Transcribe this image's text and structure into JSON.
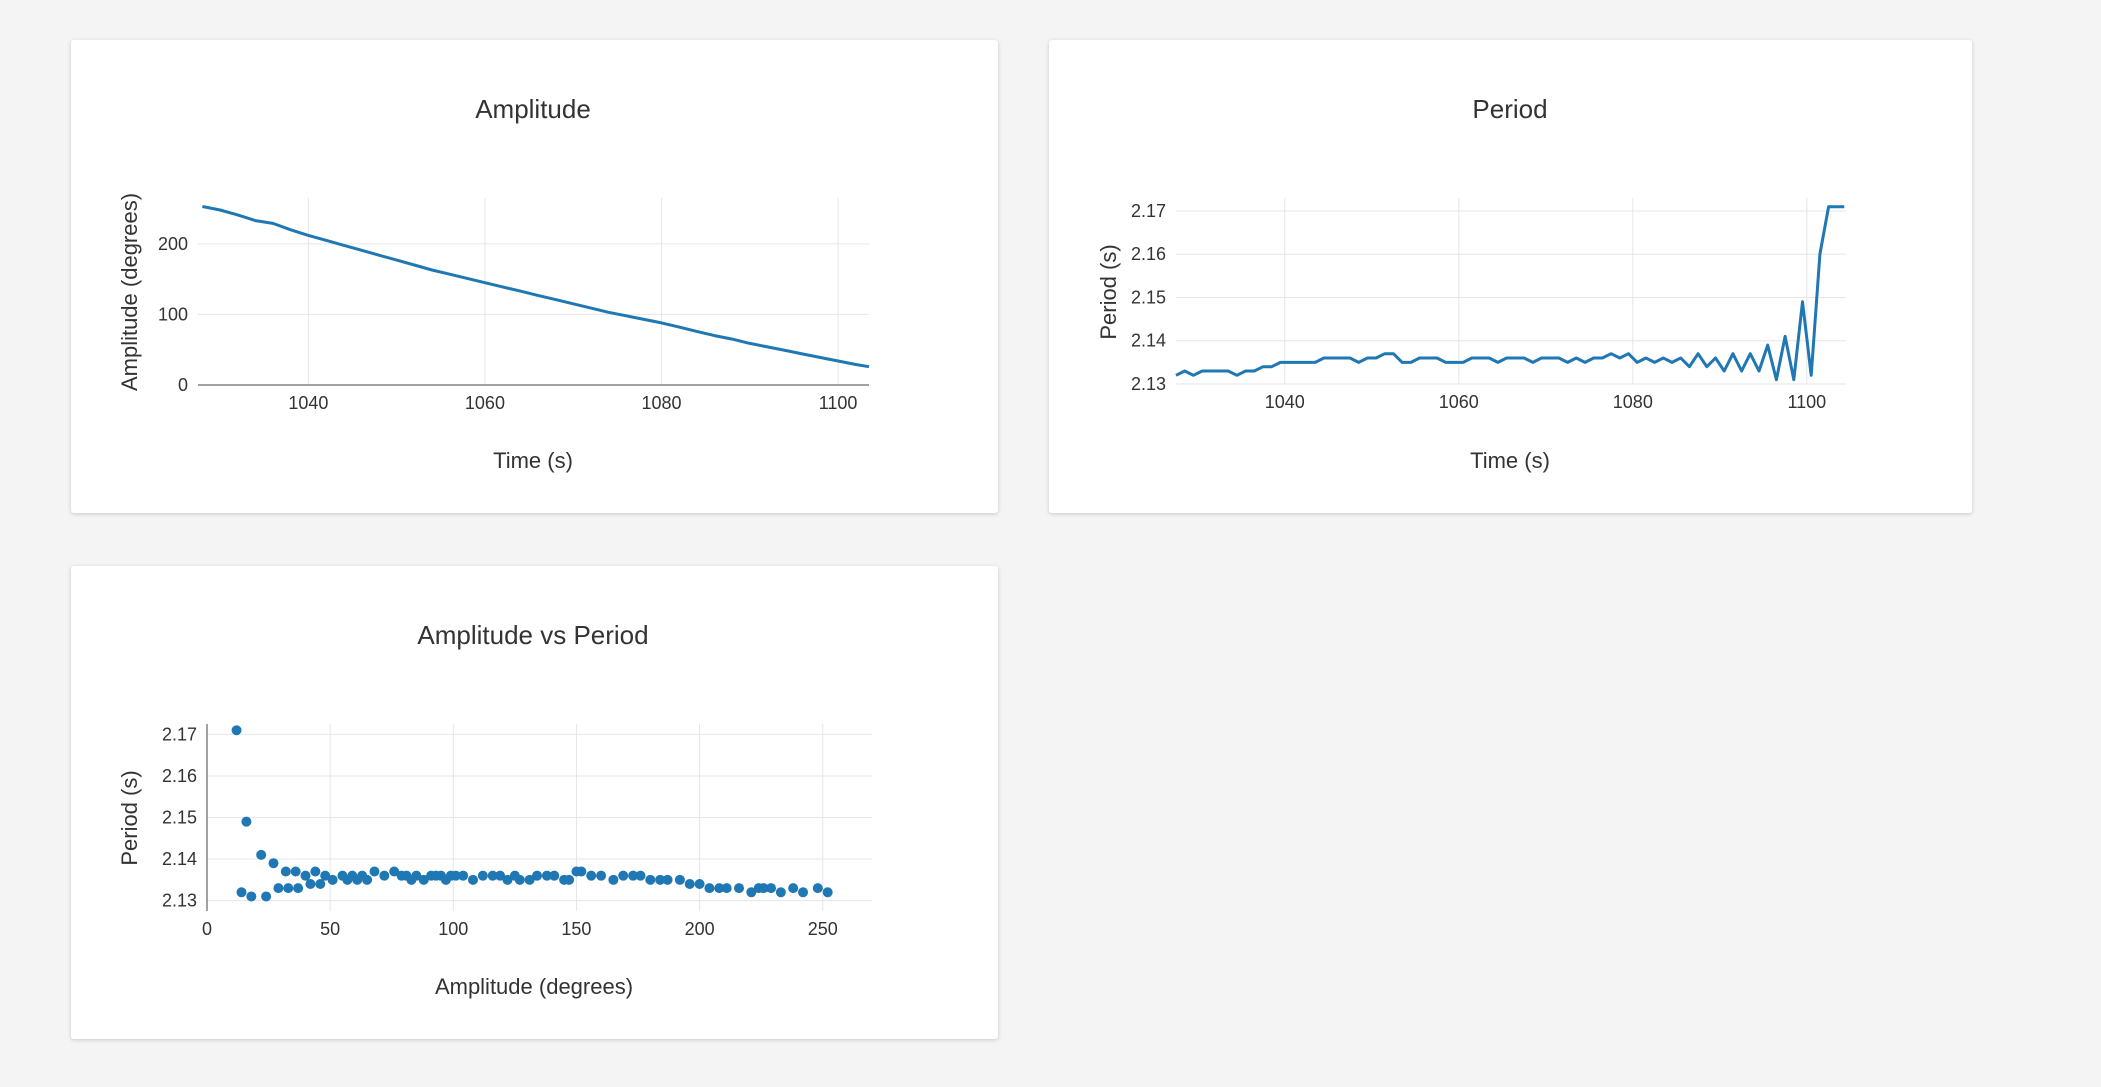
{
  "charts": {
    "amplitude": {
      "title": "Amplitude",
      "xlabel": "Time (s)",
      "ylabel": "Amplitude (degrees)"
    },
    "period": {
      "title": "Period",
      "xlabel": "Time (s)",
      "ylabel": "Period (s)"
    },
    "scatter": {
      "title": "Amplitude vs Period",
      "xlabel": "Amplitude (degrees)",
      "ylabel": "Period (s)"
    }
  },
  "colors": {
    "series": "#1f77b4",
    "grid": "#e6e6e6",
    "text": "#333333",
    "background": "#f4f4f4",
    "card": "#ffffff"
  },
  "chart_data": [
    {
      "type": "line",
      "title": "Amplitude",
      "xlabel": "Time (s)",
      "ylabel": "Amplitude (degrees)",
      "xlim": [
        1027.5,
        1103.5
      ],
      "ylim": [
        0,
        265
      ],
      "grid": true,
      "xticks": [
        1040,
        1060,
        1080,
        1100
      ],
      "yticks": [
        0,
        100,
        200
      ],
      "x": [
        1028,
        1030,
        1032,
        1034,
        1036,
        1038,
        1040,
        1042,
        1044,
        1046,
        1048,
        1050,
        1052,
        1054,
        1056,
        1058,
        1060,
        1062,
        1064,
        1066,
        1068,
        1070,
        1072,
        1074,
        1076,
        1078,
        1080,
        1082,
        1084,
        1086,
        1088,
        1090,
        1092,
        1094,
        1096,
        1098,
        1100,
        1102,
        1103.5
      ],
      "y": [
        253,
        248,
        241,
        233,
        229,
        220,
        212,
        205,
        198,
        191,
        184,
        177,
        170,
        163,
        157,
        151,
        145,
        139,
        133,
        127,
        121,
        115,
        109,
        103,
        98,
        93,
        88,
        82,
        76,
        70,
        65,
        59,
        54,
        49,
        44,
        39,
        34,
        29,
        26
      ]
    },
    {
      "type": "line",
      "title": "Period",
      "xlabel": "Time (s)",
      "ylabel": "Period (s)",
      "xlim": [
        1027.5,
        1104.5
      ],
      "ylim": [
        2.13,
        2.173
      ],
      "grid": true,
      "xticks": [
        1040,
        1060,
        1080,
        1100
      ],
      "yticks": [
        2.13,
        2.14,
        2.15,
        2.16,
        2.17
      ],
      "x": [
        1027.5,
        1028.5,
        1029.5,
        1030.5,
        1031.5,
        1032.5,
        1033.5,
        1034.5,
        1035.5,
        1036.5,
        1037.5,
        1038.5,
        1039.5,
        1040.5,
        1041.5,
        1042.5,
        1043.5,
        1044.5,
        1045.5,
        1046.5,
        1047.5,
        1048.5,
        1049.5,
        1050.5,
        1051.5,
        1052.5,
        1053.5,
        1054.5,
        1055.5,
        1056.5,
        1057.5,
        1058.5,
        1059.5,
        1060.5,
        1061.5,
        1062.5,
        1063.5,
        1064.5,
        1065.5,
        1066.5,
        1067.5,
        1068.5,
        1069.5,
        1070.5,
        1071.5,
        1072.5,
        1073.5,
        1074.5,
        1075.5,
        1076.5,
        1077.5,
        1078.5,
        1079.5,
        1080.5,
        1081.5,
        1082.5,
        1083.5,
        1084.5,
        1085.5,
        1086.5,
        1087.5,
        1088.5,
        1089.5,
        1090.5,
        1091.5,
        1092.5,
        1093.5,
        1094.5,
        1095.5,
        1096.5,
        1097.5,
        1098.5,
        1099.5,
        1100.5,
        1101.5,
        1102.5,
        1103.5,
        1104.3
      ],
      "y": [
        2.132,
        2.133,
        2.132,
        2.133,
        2.133,
        2.133,
        2.133,
        2.132,
        2.133,
        2.133,
        2.134,
        2.134,
        2.135,
        2.135,
        2.135,
        2.135,
        2.135,
        2.136,
        2.136,
        2.136,
        2.136,
        2.135,
        2.136,
        2.136,
        2.137,
        2.137,
        2.135,
        2.135,
        2.136,
        2.136,
        2.136,
        2.135,
        2.135,
        2.135,
        2.136,
        2.136,
        2.136,
        2.135,
        2.136,
        2.136,
        2.136,
        2.135,
        2.136,
        2.136,
        2.136,
        2.135,
        2.136,
        2.135,
        2.136,
        2.136,
        2.137,
        2.136,
        2.137,
        2.135,
        2.136,
        2.135,
        2.136,
        2.135,
        2.136,
        2.134,
        2.137,
        2.134,
        2.136,
        2.133,
        2.137,
        2.133,
        2.137,
        2.133,
        2.139,
        2.131,
        2.141,
        2.131,
        2.149,
        2.132,
        2.16,
        2.171,
        2.171,
        2.171
      ]
    },
    {
      "type": "scatter",
      "title": "Amplitude vs Period",
      "xlabel": "Amplitude (degrees)",
      "ylabel": "Period (s)",
      "xlim": [
        0,
        270
      ],
      "ylim": [
        2.1275,
        2.1725
      ],
      "grid": true,
      "xticks": [
        0,
        50,
        100,
        150,
        200,
        250
      ],
      "yticks": [
        2.13,
        2.14,
        2.15,
        2.16,
        2.17
      ],
      "x": [
        12,
        14,
        16,
        18,
        22,
        24,
        27,
        29,
        32,
        33,
        36,
        37,
        40,
        42,
        44,
        46,
        48,
        51,
        55,
        57,
        59,
        61,
        63,
        65,
        68,
        72,
        76,
        79,
        81,
        83,
        85,
        88,
        91,
        93,
        95,
        97,
        99,
        101,
        104,
        108,
        112,
        116,
        119,
        122,
        125,
        127,
        131,
        134,
        138,
        141,
        145,
        147,
        150,
        152,
        156,
        160,
        165,
        169,
        173,
        176,
        180,
        184,
        187,
        192,
        196,
        200,
        204,
        208,
        211,
        216,
        221,
        224,
        226,
        229,
        233,
        238,
        242,
        248,
        252
      ],
      "y": [
        2.171,
        2.132,
        2.149,
        2.131,
        2.141,
        2.131,
        2.139,
        2.133,
        2.137,
        2.133,
        2.137,
        2.133,
        2.136,
        2.134,
        2.137,
        2.134,
        2.136,
        2.135,
        2.136,
        2.135,
        2.136,
        2.135,
        2.136,
        2.135,
        2.137,
        2.136,
        2.137,
        2.136,
        2.136,
        2.135,
        2.136,
        2.135,
        2.136,
        2.136,
        2.136,
        2.135,
        2.136,
        2.136,
        2.136,
        2.135,
        2.136,
        2.136,
        2.136,
        2.135,
        2.136,
        2.135,
        2.135,
        2.136,
        2.136,
        2.136,
        2.135,
        2.135,
        2.137,
        2.137,
        2.136,
        2.136,
        2.135,
        2.136,
        2.136,
        2.136,
        2.135,
        2.135,
        2.135,
        2.135,
        2.134,
        2.134,
        2.133,
        2.133,
        2.133,
        2.133,
        2.132,
        2.133,
        2.133,
        2.133,
        2.132,
        2.133,
        2.132,
        2.133,
        2.132
      ]
    }
  ]
}
